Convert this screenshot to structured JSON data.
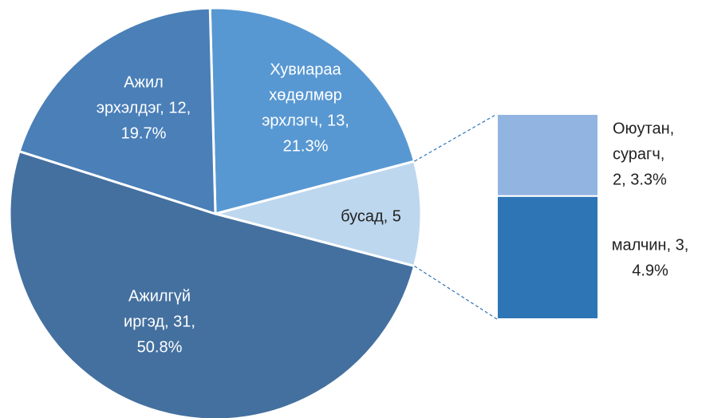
{
  "chart_data": {
    "type": "bar-of-pie",
    "values": [
      13,
      5,
      31,
      12
    ],
    "colors": [
      "#5898d2",
      "#bdd7ee",
      "#44709f",
      "#4a7fb8"
    ],
    "labels": [
      [
        "Хувиараа",
        "хөдөлмөр",
        "эрхлэгч, 13,",
        "21.3%"
      ],
      [
        "бусад, 5"
      ],
      [
        "Ажилгүй",
        "иргэд, 31,",
        "50.8%"
      ],
      [
        "Ажил",
        "эрхэлдэг, 12,",
        "19.7%"
      ]
    ],
    "split": {
      "values": [
        2,
        3
      ],
      "colors": [
        "#92b4e0",
        "#2e75b6"
      ],
      "labels": [
        [
          "Оюутан,",
          "сурагч,",
          "2, 3.3%"
        ],
        [
          "малчин, 3,",
          "4.9%"
        ]
      ]
    }
  }
}
